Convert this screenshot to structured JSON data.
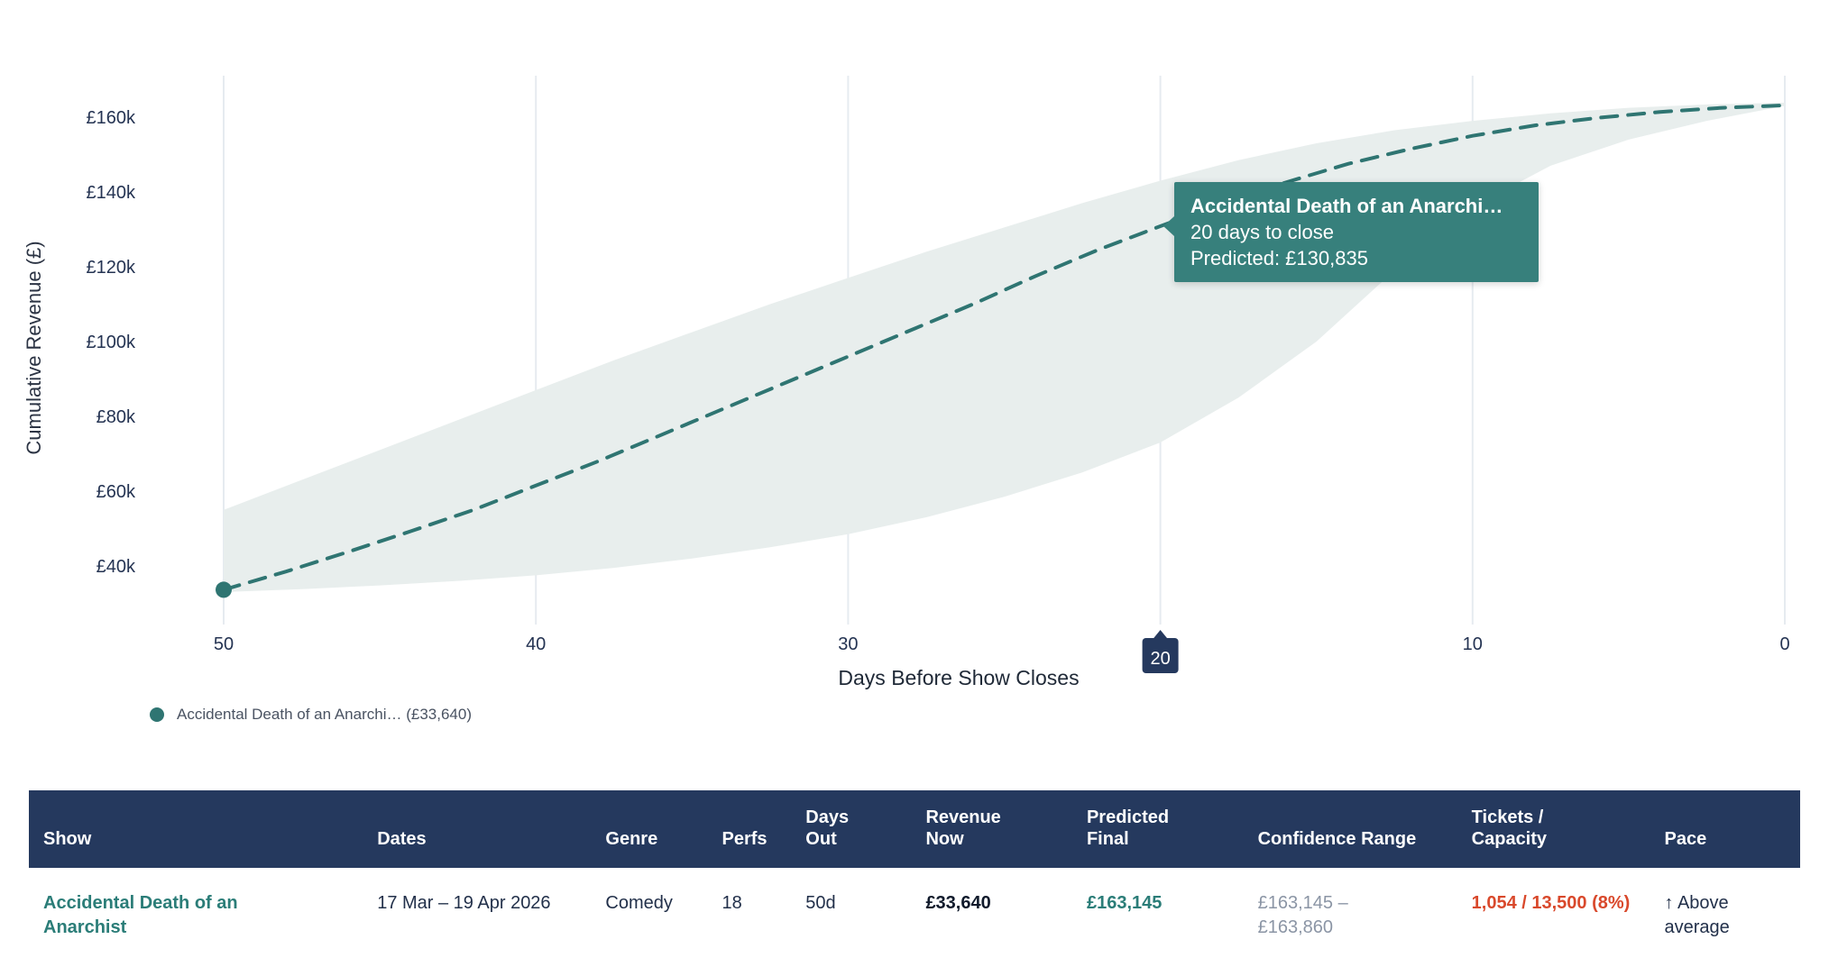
{
  "colors": {
    "teal": "#2f7572",
    "tooltip_bg": "#37807c",
    "band": "#e8eeed",
    "grid": "#e6ebf0",
    "navy": "#25395e",
    "tick_text": "#243352",
    "red": "#d9492c",
    "link": "#2b7d78",
    "muted": "#8b95a5"
  },
  "chart_data": {
    "type": "line",
    "title": "",
    "xlabel": "Days Before Show Closes",
    "ylabel": "Cumulative Revenue (£)",
    "x_axis": {
      "ticks": [
        50,
        40,
        30,
        20,
        10,
        0
      ],
      "highlighted_tick": 20,
      "direction": "descending to 0"
    },
    "y_axis": {
      "tick_values_k": [
        40,
        60,
        80,
        100,
        120,
        140,
        160
      ],
      "tick_prefix": "£",
      "tick_suffix": "k"
    },
    "grid": "vertical-only",
    "series": [
      {
        "name": "Accidental Death of an Anarchi… (£33,640)",
        "color": "#2f7572",
        "style": "dashed",
        "start_marker": {
          "day": 50,
          "value_k": 33.64
        },
        "points_day_value_k": [
          [
            50,
            33.64
          ],
          [
            48,
            38.5
          ],
          [
            46,
            43.8
          ],
          [
            44,
            49.3
          ],
          [
            42,
            55
          ],
          [
            40,
            61.5
          ],
          [
            38,
            68
          ],
          [
            36,
            75
          ],
          [
            34,
            82
          ],
          [
            32,
            89
          ],
          [
            30,
            96
          ],
          [
            28,
            103
          ],
          [
            26,
            110
          ],
          [
            24,
            117.5
          ],
          [
            22,
            124.5
          ],
          [
            20,
            130.835
          ],
          [
            18,
            137
          ],
          [
            16,
            142.5
          ],
          [
            14,
            147.5
          ],
          [
            12,
            151.5
          ],
          [
            10,
            155
          ],
          [
            8,
            157.8
          ],
          [
            6,
            159.8
          ],
          [
            4,
            161.4
          ],
          [
            2,
            162.5
          ],
          [
            0,
            163.145
          ]
        ]
      }
    ],
    "confidence_band": {
      "upper_day_value_k": [
        [
          50,
          55
        ],
        [
          47.5,
          63
        ],
        [
          45,
          71
        ],
        [
          42.5,
          79
        ],
        [
          40,
          87
        ],
        [
          37.5,
          95
        ],
        [
          35,
          102.5
        ],
        [
          32.5,
          110
        ],
        [
          30,
          117
        ],
        [
          27.5,
          124
        ],
        [
          25,
          130.5
        ],
        [
          22.5,
          137
        ],
        [
          20,
          143
        ],
        [
          17.5,
          148.5
        ],
        [
          15,
          153
        ],
        [
          12.5,
          156.5
        ],
        [
          10,
          159
        ],
        [
          7.5,
          161
        ],
        [
          5,
          162.5
        ],
        [
          2.5,
          163.4
        ],
        [
          0,
          163.86
        ]
      ],
      "lower_day_value_k": [
        [
          50,
          33
        ],
        [
          47.5,
          33.8
        ],
        [
          45,
          34.8
        ],
        [
          42.5,
          36
        ],
        [
          40,
          37.5
        ],
        [
          37.5,
          39.5
        ],
        [
          35,
          42
        ],
        [
          32.5,
          45
        ],
        [
          30,
          48.5
        ],
        [
          27.5,
          53
        ],
        [
          25,
          58.5
        ],
        [
          22.5,
          65
        ],
        [
          20,
          73
        ],
        [
          17.5,
          85
        ],
        [
          15,
          100
        ],
        [
          12.5,
          119
        ],
        [
          10,
          136
        ],
        [
          7.5,
          147
        ],
        [
          5,
          154
        ],
        [
          2.5,
          159
        ],
        [
          0,
          163
        ]
      ]
    },
    "tooltip": {
      "title": "Accidental Death of an Anarchi…",
      "line1": "20 days to close",
      "line2": "Predicted: £130,835",
      "anchor_day": 20,
      "anchor_value_k": 130.835
    }
  },
  "legend": {
    "items": [
      {
        "label": "Accidental Death of an Anarchi… (£33,640)",
        "color": "#2f7572"
      }
    ]
  },
  "table": {
    "columns": [
      {
        "id": "show",
        "lines": [
          "Show"
        ]
      },
      {
        "id": "dates",
        "lines": [
          "Dates"
        ]
      },
      {
        "id": "genre",
        "lines": [
          "Genre"
        ]
      },
      {
        "id": "perfs",
        "lines": [
          "Perfs"
        ]
      },
      {
        "id": "days_out",
        "lines": [
          "Days",
          "Out"
        ]
      },
      {
        "id": "revenue_now",
        "lines": [
          "Revenue",
          "Now"
        ]
      },
      {
        "id": "predicted_final",
        "lines": [
          "Predicted",
          "Final"
        ]
      },
      {
        "id": "confidence_range",
        "lines": [
          "Confidence Range"
        ]
      },
      {
        "id": "tickets_capacity",
        "lines": [
          "Tickets /",
          "Capacity"
        ]
      },
      {
        "id": "pace",
        "lines": [
          "Pace"
        ]
      }
    ],
    "rows": [
      {
        "show": "Accidental Death of an Anarchist",
        "dates": "17 Mar – 19 Apr 2026",
        "genre": "Comedy",
        "perfs": "18",
        "days_out": "50d",
        "revenue_now": "£33,640",
        "predicted_final": "£163,145",
        "confidence_range": "£163,145 – £163,860",
        "tickets_capacity": "1,054 / 13,500 (8%)",
        "pace": "↑ Above average"
      }
    ]
  }
}
